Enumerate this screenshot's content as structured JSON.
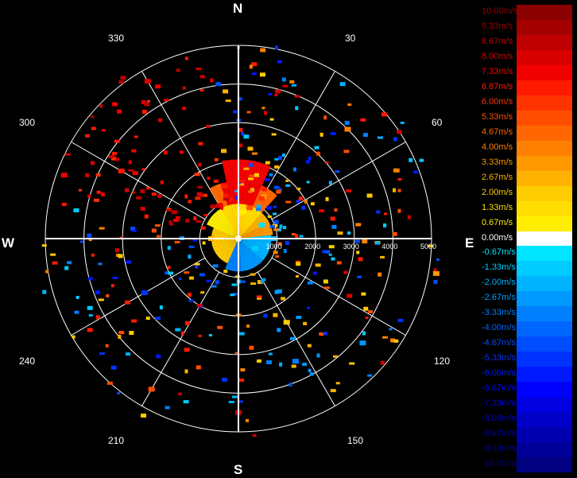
{
  "chart_data": {
    "type": "polar-radar",
    "compass": {
      "north": "N",
      "east": "E",
      "south": "S",
      "west": "W"
    },
    "azimuth_labels": [
      "30",
      "60",
      "120",
      "150",
      "210",
      "240",
      "300",
      "330"
    ],
    "range_labels": [
      "1000",
      "2000",
      "3000",
      "4000",
      "5000"
    ],
    "range_rings": [
      1000,
      2000,
      3000,
      4000,
      5000
    ],
    "radial_lines_deg": [
      0,
      30,
      60,
      90,
      120,
      150,
      180,
      210,
      240,
      270,
      300,
      330
    ],
    "legend": [
      {
        "label": "10.00m/s",
        "color": "#8b0000"
      },
      {
        "label": "9.33m/s",
        "color": "#a50000"
      },
      {
        "label": "8.67m/s",
        "color": "#bf0000"
      },
      {
        "label": "8.00m/s",
        "color": "#d90000"
      },
      {
        "label": "7.33m/s",
        "color": "#f20000"
      },
      {
        "label": "6.87m/s",
        "color": "#ff1a00"
      },
      {
        "label": "6.00m/s",
        "color": "#ff3300"
      },
      {
        "label": "5.33m/s",
        "color": "#ff4d00"
      },
      {
        "label": "4.67m/s",
        "color": "#ff6600"
      },
      {
        "label": "4.00m/s",
        "color": "#ff8000"
      },
      {
        "label": "3.33m/s",
        "color": "#ff9900"
      },
      {
        "label": "2.67m/s",
        "color": "#ffb300"
      },
      {
        "label": "2.00m/s",
        "color": "#ffcc00"
      },
      {
        "label": "1.33m/s",
        "color": "#ffdd00"
      },
      {
        "label": "0.67m/s",
        "color": "#ffee00"
      },
      {
        "label": "0.00m/s",
        "color": "#ffffff"
      },
      {
        "label": "-0.67m/s",
        "color": "#00e5ff"
      },
      {
        "label": "-1.33m/s",
        "color": "#00ccff"
      },
      {
        "label": "-2.00m/s",
        "color": "#00b3ff"
      },
      {
        "label": "-2.67m/s",
        "color": "#0099ff"
      },
      {
        "label": "-3.33m/s",
        "color": "#0080ff"
      },
      {
        "label": "-4.00m/s",
        "color": "#0066ff"
      },
      {
        "label": "-4.67m/s",
        "color": "#004dff"
      },
      {
        "label": "-5.33m/s",
        "color": "#0033ff"
      },
      {
        "label": "-6.00m/s",
        "color": "#001aff"
      },
      {
        "label": "-6.67m/s",
        "color": "#0000ff"
      },
      {
        "label": "-7.33m/s",
        "color": "#0000e0"
      },
      {
        "label": "-8.00m/s",
        "color": "#0000c8"
      },
      {
        "label": "-8.67m/s",
        "color": "#0000b0"
      },
      {
        "label": "-9.33m/s",
        "color": "#000098"
      },
      {
        "label": "-10.00m/s",
        "color": "#000080"
      }
    ],
    "returns": [
      {
        "az_deg": 0,
        "range_m": 650,
        "velocity_ms": 1.33
      },
      {
        "az_deg": 10,
        "range_m": 700,
        "velocity_ms": 0.67
      },
      {
        "az_deg": 20,
        "range_m": 850,
        "velocity_ms": 5.3
      },
      {
        "az_deg": 30,
        "range_m": 1200,
        "velocity_ms": 6.0
      },
      {
        "az_deg": 60,
        "range_m": 700,
        "velocity_ms": -0.67
      },
      {
        "az_deg": 90,
        "range_m": 900,
        "velocity_ms": -2.0
      },
      {
        "az_deg": 120,
        "range_m": 500,
        "velocity_ms": -1.33
      },
      {
        "az_deg": 150,
        "range_m": 2500,
        "velocity_ms": 2.0
      },
      {
        "az_deg": 155,
        "range_m": 3500,
        "velocity_ms": -3.3
      },
      {
        "az_deg": 180,
        "range_m": 4500,
        "velocity_ms": 8.67
      },
      {
        "az_deg": 210,
        "range_m": 4500,
        "velocity_ms": 5.33
      },
      {
        "az_deg": 240,
        "range_m": 2800,
        "velocity_ms": -5.33
      },
      {
        "az_deg": 270,
        "range_m": 700,
        "velocity_ms": 2.67
      },
      {
        "az_deg": 290,
        "range_m": 4800,
        "velocity_ms": 7.33
      },
      {
        "az_deg": 300,
        "range_m": 3500,
        "velocity_ms": 6.87
      },
      {
        "az_deg": 330,
        "range_m": 4700,
        "velocity_ms": 8.0
      },
      {
        "az_deg": 345,
        "range_m": 1400,
        "velocity_ms": 6.87
      },
      {
        "az_deg": 45,
        "range_m": 4000,
        "velocity_ms": 4.0
      },
      {
        "az_deg": 100,
        "range_m": 5200,
        "velocity_ms": 3.33
      },
      {
        "az_deg": 130,
        "range_m": 4200,
        "velocity_ms": -2.67
      }
    ]
  }
}
